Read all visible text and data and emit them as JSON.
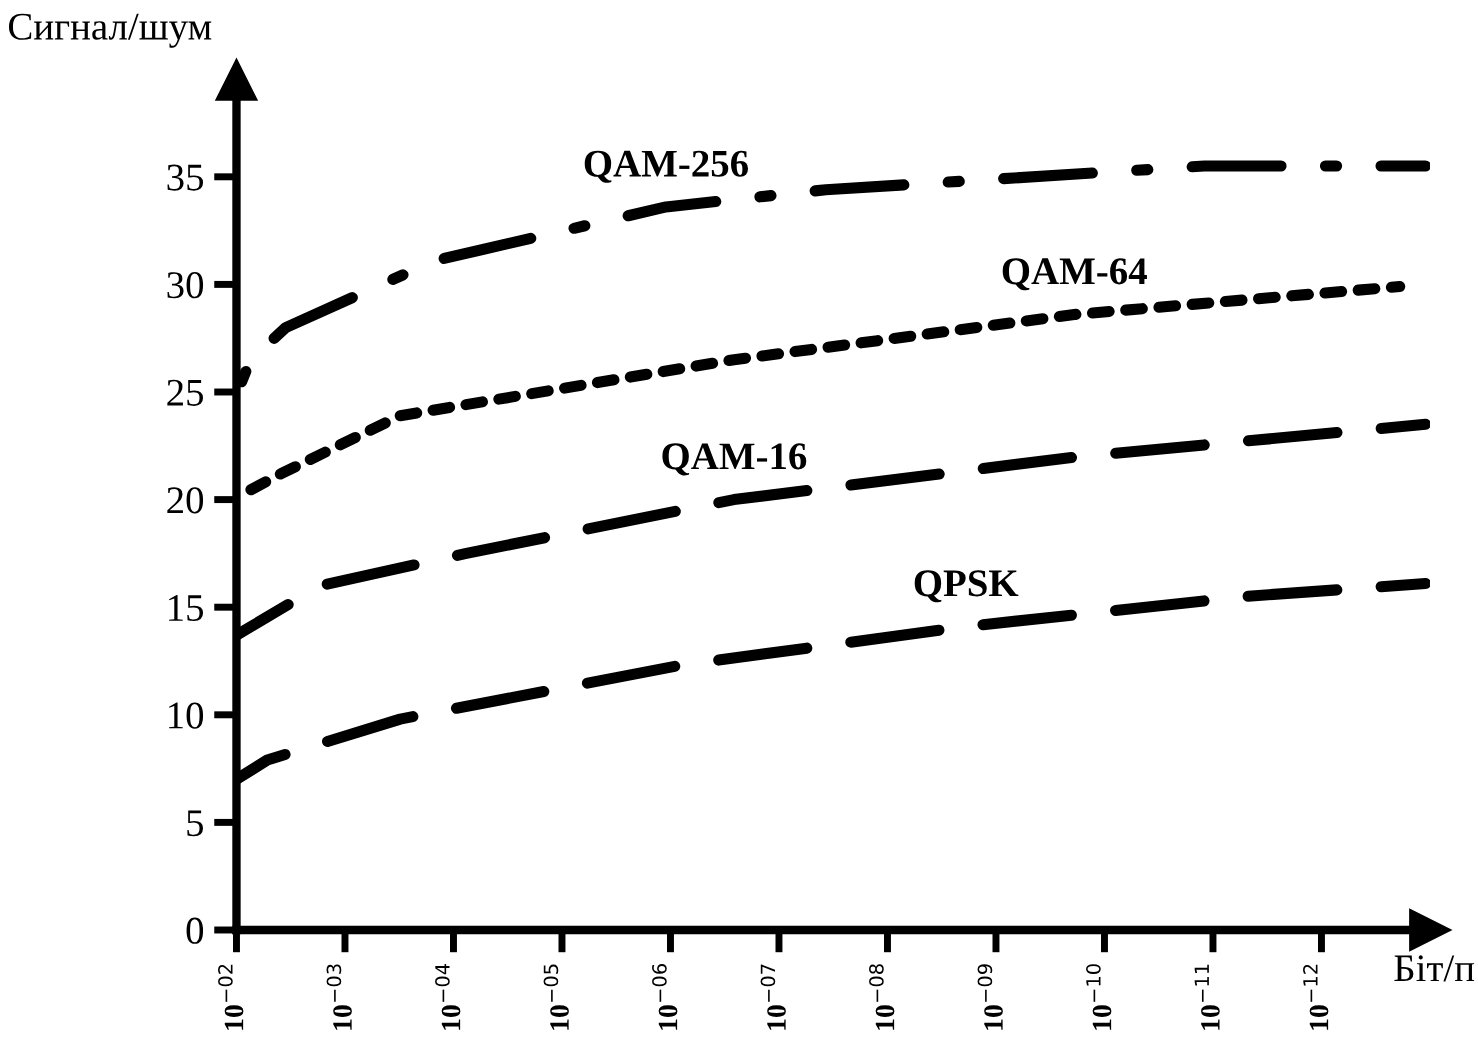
{
  "chart_data": {
    "type": "line",
    "xlabel": "Біт/п",
    "ylabel": "Сигнал/шум",
    "log": "x",
    "xlim": [
      0.01,
      1e-13
    ],
    "ylim": [
      0,
      39.5
    ],
    "xticks": [
      {
        "value": 0.01,
        "label": "10$^{−02}$"
      },
      {
        "value": 0.001,
        "label": "10$^{−03}$"
      },
      {
        "value": 0.0001,
        "label": "10$^{−04}$"
      },
      {
        "value": 1e-05,
        "label": "10$^{−05}$"
      },
      {
        "value": 1e-06,
        "label": "10$^{−06}$"
      },
      {
        "value": 1e-07,
        "label": "10$^{−07}$"
      },
      {
        "value": 1e-08,
        "label": "10$^{−08}$"
      },
      {
        "value": 1e-09,
        "label": "10$^{−09}$"
      },
      {
        "value": 1e-10,
        "label": "10$^{−10}$"
      },
      {
        "value": 1e-11,
        "label": "10$^{−11}$"
      },
      {
        "value": 1e-12,
        "label": "10$^{−12}$"
      }
    ],
    "yticks": [
      0,
      5,
      10,
      15,
      20,
      25,
      30,
      35
    ],
    "grid": false,
    "legend": false,
    "marker": "none",
    "series": [
      {
        "name": "QAM-256",
        "color": "#000000",
        "line_style": "dashdot",
        "x": [
          0.01,
          0.0074,
          0.0035,
          0.00015,
          1.1e-06,
          3.7e-08,
          1.2e-11,
          1.1e-13
        ],
        "values": [
          24.9,
          26.5,
          28.0,
          31.1,
          33.6,
          34.4,
          35.5,
          35.5
        ]
      },
      {
        "name": "QAM-64",
        "color": "#000000",
        "line_style": "dotted",
        "x": [
          0.01,
          0.0039,
          0.00031,
          2.6e-07,
          1.9e-10,
          1.9e-13
        ],
        "values": [
          20.1,
          21.2,
          23.9,
          26.5,
          28.6,
          29.9
        ]
      },
      {
        "name": "QAM-16",
        "color": "#000000",
        "line_style": "dashed",
        "x": [
          0.01,
          0.0017,
          7.6e-05,
          2.6e-07,
          1.7e-10,
          1.1e-13
        ],
        "values": [
          13.7,
          16.0,
          17.5,
          20.0,
          22.0,
          23.5
        ]
      },
      {
        "name": "QPSK",
        "color": "#000000",
        "line_style": "dashed",
        "x": [
          0.01,
          0.0052,
          0.00031,
          8.1e-07,
          1.9e-09,
          5e-12,
          1.1e-13
        ],
        "values": [
          7.0,
          7.9,
          9.8,
          12.3,
          14.1,
          15.5,
          16.1
        ]
      }
    ]
  }
}
